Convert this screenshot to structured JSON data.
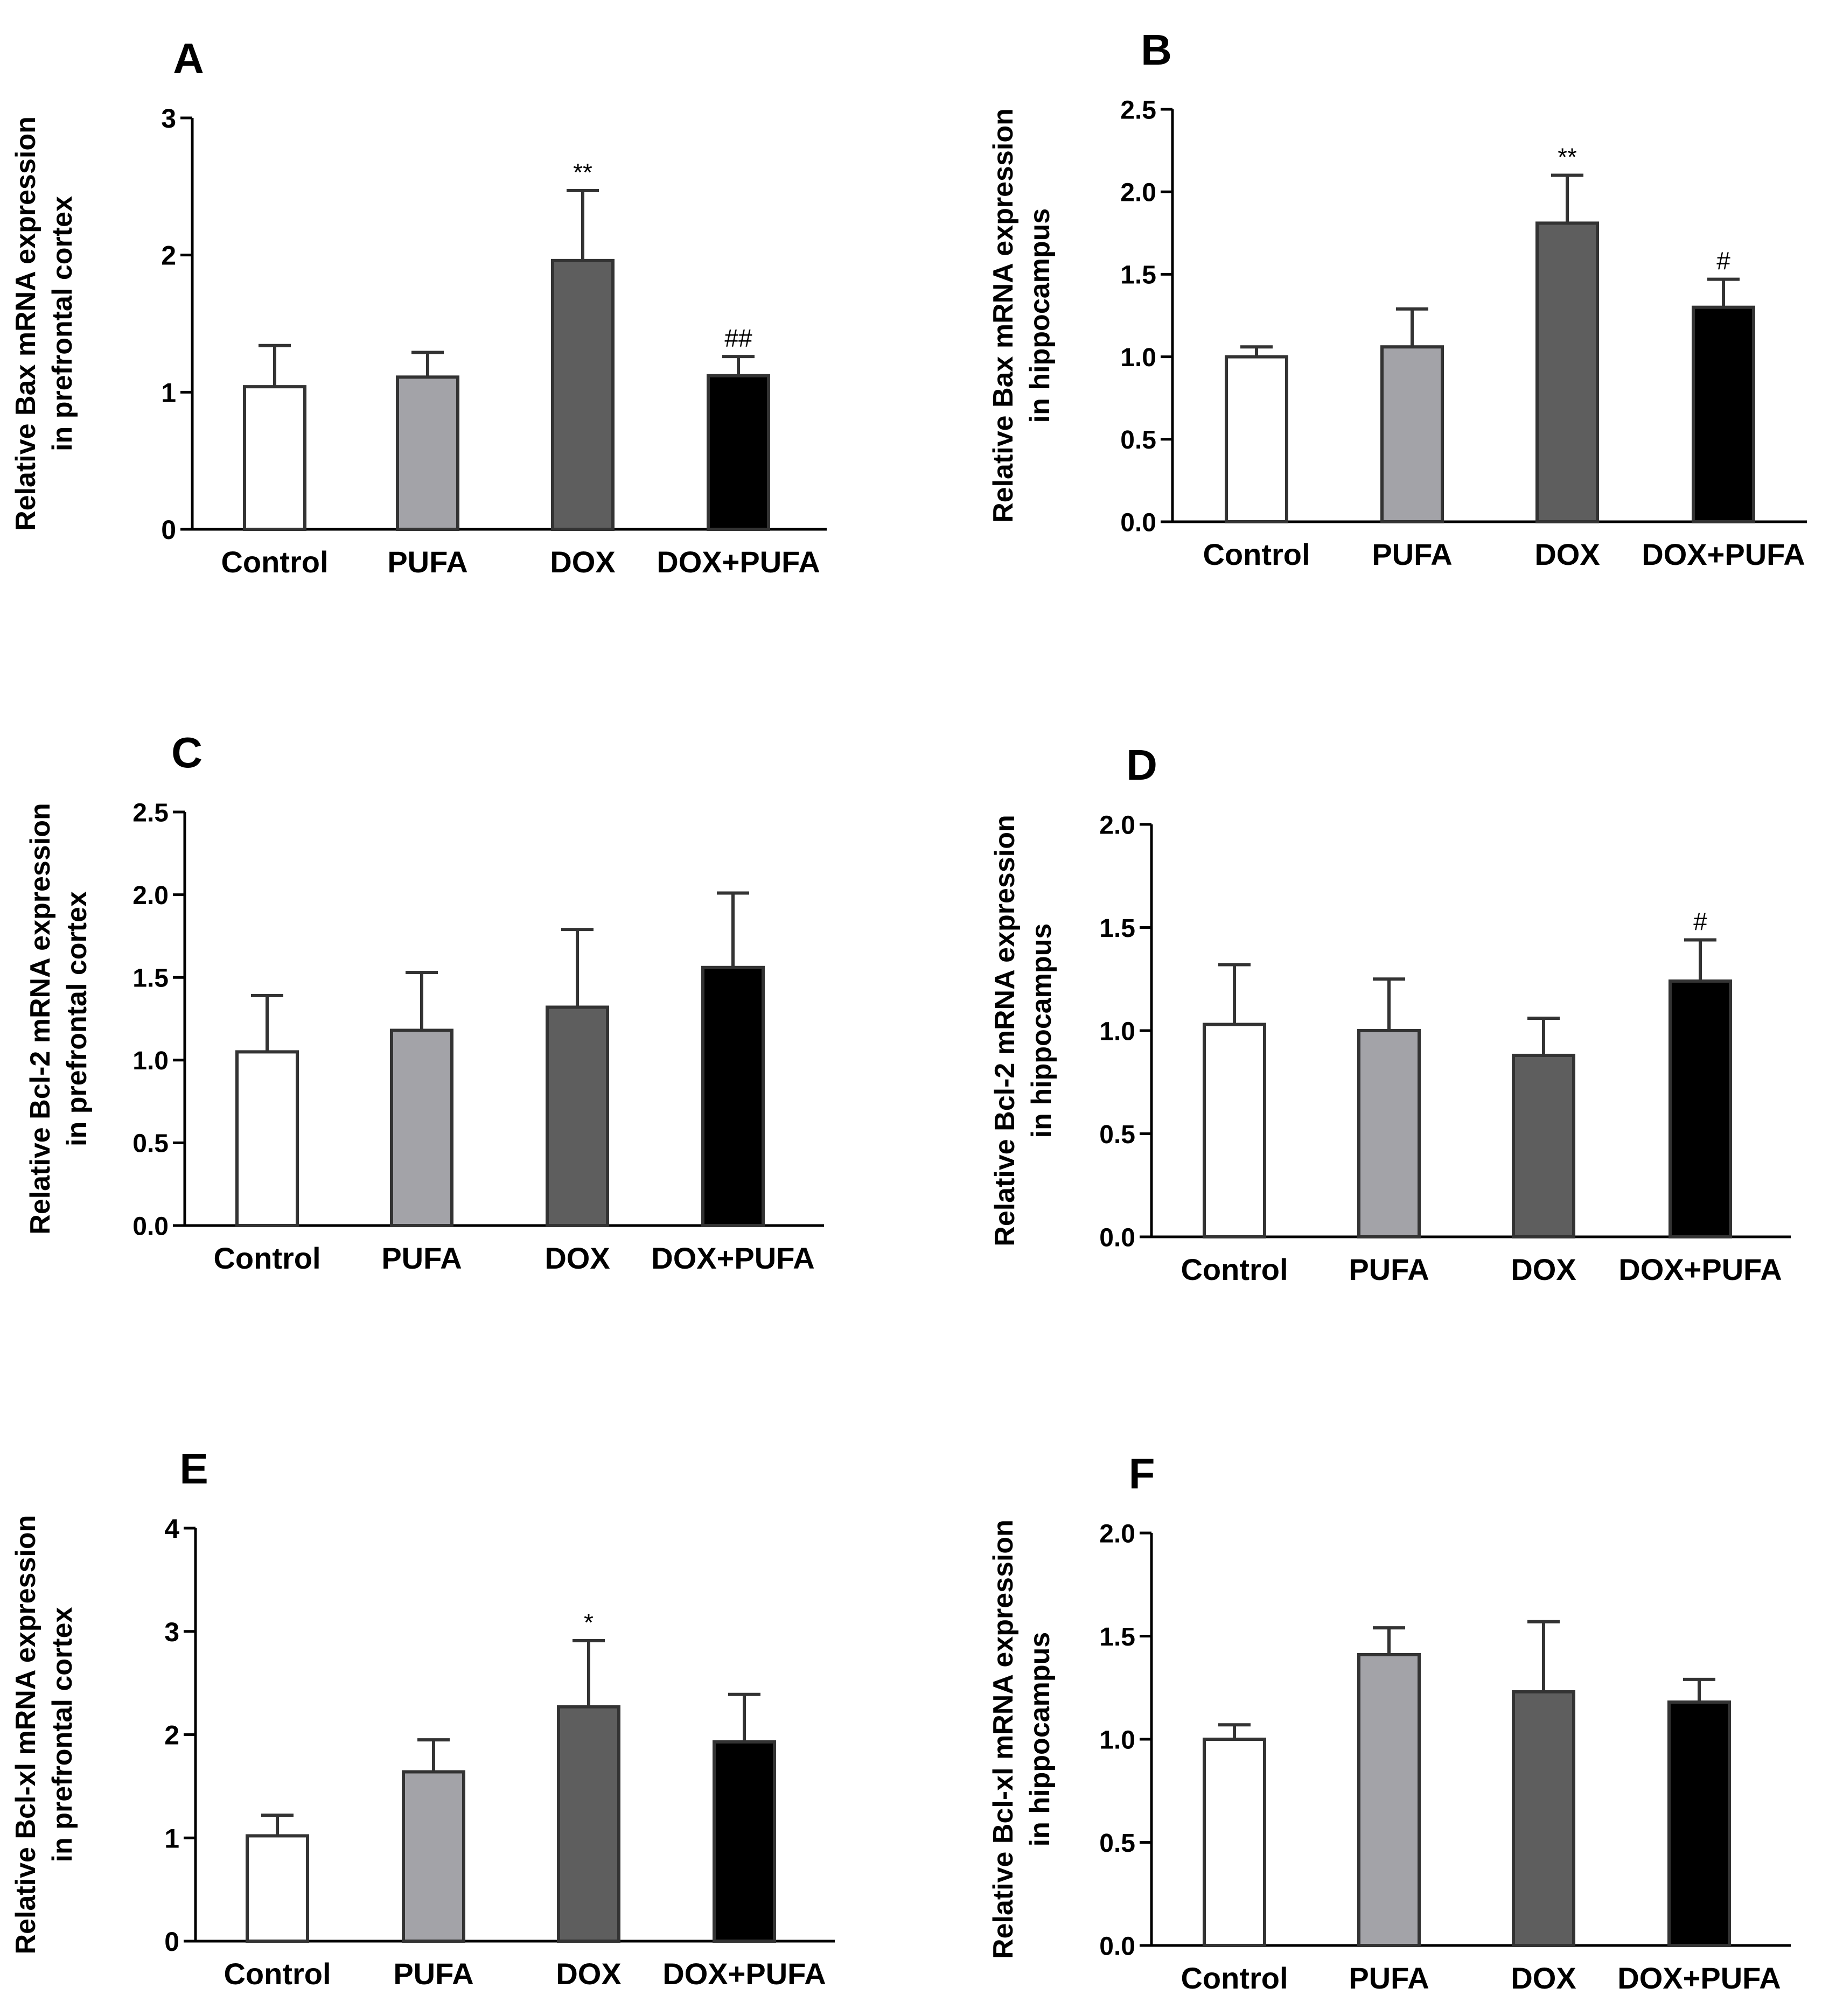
{
  "figure": {
    "colors": {
      "Control": "#ffffff",
      "PUFA": "#a3a3a8",
      "DOX": "#5e5e5e",
      "DOX+PUFA": "#000000",
      "outline": "#333333"
    }
  },
  "chart_data": [
    {
      "panel": "A",
      "type": "bar",
      "ylabel_line1": "Relative Bax mRNA expression",
      "ylabel_line2": "in prefrontal cortex",
      "categories": [
        "Control",
        "PUFA",
        "DOX",
        "DOX+PUFA"
      ],
      "values": [
        1.04,
        1.11,
        1.96,
        1.12
      ],
      "errors": [
        0.3,
        0.18,
        0.51,
        0.14
      ],
      "annotations": [
        "",
        "",
        "**",
        "##"
      ],
      "ylim": [
        0,
        3
      ],
      "yticks": [
        0,
        1,
        2,
        3
      ],
      "yticklabels": [
        "0",
        "1",
        "2",
        "3"
      ]
    },
    {
      "panel": "B",
      "type": "bar",
      "ylabel_line1": "Relative Bax mRNA expression",
      "ylabel_line2": "in hippocampus",
      "categories": [
        "Control",
        "PUFA",
        "DOX",
        "DOX+PUFA"
      ],
      "values": [
        1.0,
        1.06,
        1.81,
        1.3
      ],
      "errors": [
        0.06,
        0.23,
        0.29,
        0.17
      ],
      "annotations": [
        "",
        "",
        "**",
        "#"
      ],
      "ylim": [
        0,
        2.5
      ],
      "yticks": [
        0,
        0.5,
        1.0,
        1.5,
        2.0,
        2.5
      ],
      "yticklabels": [
        "0.0",
        "0.5",
        "1.0",
        "1.5",
        "2.0",
        "2.5"
      ]
    },
    {
      "panel": "C",
      "type": "bar",
      "ylabel_line1": "Relative Bcl-2 mRNA expression",
      "ylabel_line2": "in prefrontal cortex",
      "categories": [
        "Control",
        "PUFA",
        "DOX",
        "DOX+PUFA"
      ],
      "values": [
        1.05,
        1.18,
        1.32,
        1.56
      ],
      "errors": [
        0.34,
        0.35,
        0.47,
        0.45
      ],
      "annotations": [
        "",
        "",
        "",
        ""
      ],
      "ylim": [
        0,
        2.5
      ],
      "yticks": [
        0,
        0.5,
        1.0,
        1.5,
        2.0,
        2.5
      ],
      "yticklabels": [
        "0.0",
        "0.5",
        "1.0",
        "1.5",
        "2.0",
        "2.5"
      ]
    },
    {
      "panel": "D",
      "type": "bar",
      "ylabel_line1": "Relative Bcl-2 mRNA expression",
      "ylabel_line2": "in hippocampus",
      "categories": [
        "Control",
        "PUFA",
        "DOX",
        "DOX+PUFA"
      ],
      "values": [
        1.03,
        1.0,
        0.88,
        1.24
      ],
      "errors": [
        0.29,
        0.25,
        0.18,
        0.2
      ],
      "annotations": [
        "",
        "",
        "",
        "#"
      ],
      "ylim": [
        0,
        2.0
      ],
      "yticks": [
        0,
        0.5,
        1.0,
        1.5,
        2.0
      ],
      "yticklabels": [
        "0.0",
        "0.5",
        "1.0",
        "1.5",
        "2.0"
      ]
    },
    {
      "panel": "E",
      "type": "bar",
      "ylabel_line1": "Relative Bcl-xl mRNA expression",
      "ylabel_line2": "in prefrontal cortex",
      "categories": [
        "Control",
        "PUFA",
        "DOX",
        "DOX+PUFA"
      ],
      "values": [
        1.02,
        1.64,
        2.27,
        1.93
      ],
      "errors": [
        0.2,
        0.31,
        0.64,
        0.46
      ],
      "annotations": [
        "",
        "",
        "*",
        ""
      ],
      "ylim": [
        0,
        4
      ],
      "yticks": [
        0,
        1,
        2,
        3,
        4
      ],
      "yticklabels": [
        "0",
        "1",
        "2",
        "3",
        "4"
      ]
    },
    {
      "panel": "F",
      "type": "bar",
      "ylabel_line1": "Relative Bcl-xl mRNA expression",
      "ylabel_line2": "in hippocampus",
      "categories": [
        "Control",
        "PUFA",
        "DOX",
        "DOX+PUFA"
      ],
      "values": [
        1.0,
        1.41,
        1.23,
        1.18
      ],
      "errors": [
        0.07,
        0.13,
        0.34,
        0.11
      ],
      "annotations": [
        "",
        "",
        "",
        ""
      ],
      "ylim": [
        0,
        2.0
      ],
      "yticks": [
        0,
        0.5,
        1.0,
        1.5,
        2.0
      ],
      "yticklabels": [
        "0.0",
        "0.5",
        "1.0",
        "1.5",
        "2.0"
      ]
    }
  ]
}
